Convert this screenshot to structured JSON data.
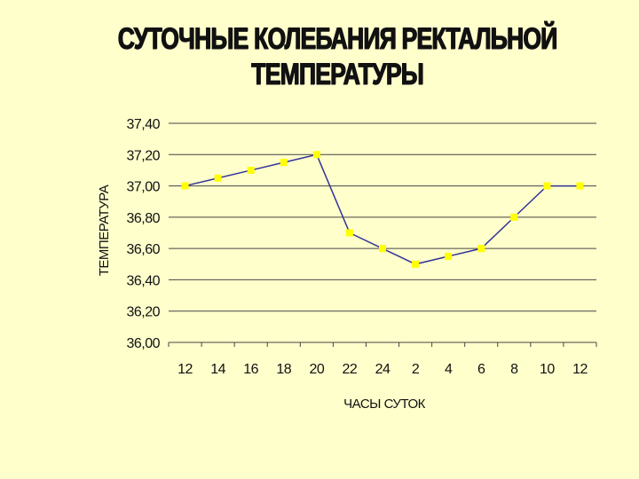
{
  "chart_data": {
    "type": "line",
    "title": "СУТОЧНЫЕ КОЛЕБАНИЯ РЕКТАЛЬНОЙ ТЕМПЕРАТУРЫ",
    "title_lines": [
      "СУТОЧНЫЕ КОЛЕБАНИЯ РЕКТАЛЬНОЙ",
      "ТЕМПЕРАТУРЫ"
    ],
    "xlabel": "ЧАСЫ СУТОК",
    "ylabel": "ТЕМПЕРАТУРА",
    "categories": [
      "12",
      "14",
      "16",
      "18",
      "20",
      "22",
      "24",
      "2",
      "4",
      "6",
      "8",
      "10",
      "12"
    ],
    "values": [
      37.0,
      37.05,
      37.1,
      37.15,
      37.2,
      36.7,
      36.6,
      36.5,
      36.55,
      36.6,
      36.8,
      37.0,
      37.0
    ],
    "ylim": [
      36.0,
      37.4
    ],
    "yticks": [
      "36,00",
      "36,20",
      "36,40",
      "36,60",
      "36,80",
      "37,00",
      "37,20",
      "37,40"
    ],
    "ytick_values": [
      36.0,
      36.2,
      36.4,
      36.6,
      36.8,
      37.0,
      37.2,
      37.4
    ],
    "grid": true,
    "line_color": "#333399",
    "marker_color": "#ffff00",
    "background_color": "#ffffcc"
  }
}
